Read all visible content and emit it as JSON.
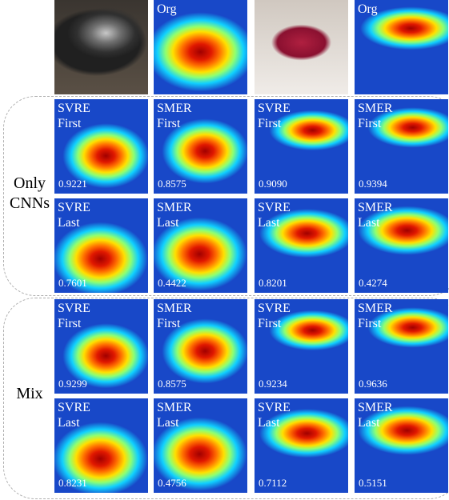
{
  "top_row": {
    "labels": [
      "Org",
      "Org"
    ]
  },
  "groups": [
    {
      "label": [
        "Only",
        "CNNs"
      ],
      "rows": [
        [
          {
            "method": "SVRE",
            "layer": "First",
            "score": "0.9221"
          },
          {
            "method": "SMER",
            "layer": "First",
            "score": "0.8575"
          },
          {
            "method": "SVRE",
            "layer": "First",
            "score": "0.9090"
          },
          {
            "method": "SMER",
            "layer": "First",
            "score": "0.9394"
          }
        ],
        [
          {
            "method": "SVRE",
            "layer": "Last",
            "score": "0.7601"
          },
          {
            "method": "SMER",
            "layer": "Last",
            "score": "0.4422"
          },
          {
            "method": "SVRE",
            "layer": "Last",
            "score": "0.8201"
          },
          {
            "method": "SMER",
            "layer": "Last",
            "score": "0.4274"
          }
        ]
      ]
    },
    {
      "label": [
        "Mix"
      ],
      "rows": [
        [
          {
            "method": "SVRE",
            "layer": "First",
            "score": "0.9299"
          },
          {
            "method": "SMER",
            "layer": "First",
            "score": "0.8575"
          },
          {
            "method": "SVRE",
            "layer": "First",
            "score": "0.9234"
          },
          {
            "method": "SMER",
            "layer": "First",
            "score": "0.9636"
          }
        ],
        [
          {
            "method": "SVRE",
            "layer": "Last",
            "score": "0.8231"
          },
          {
            "method": "SMER",
            "layer": "Last",
            "score": "0.4756"
          },
          {
            "method": "SVRE",
            "layer": "Last",
            "score": "0.7112"
          },
          {
            "method": "SMER",
            "layer": "Last",
            "score": "0.5151"
          }
        ]
      ]
    }
  ]
}
